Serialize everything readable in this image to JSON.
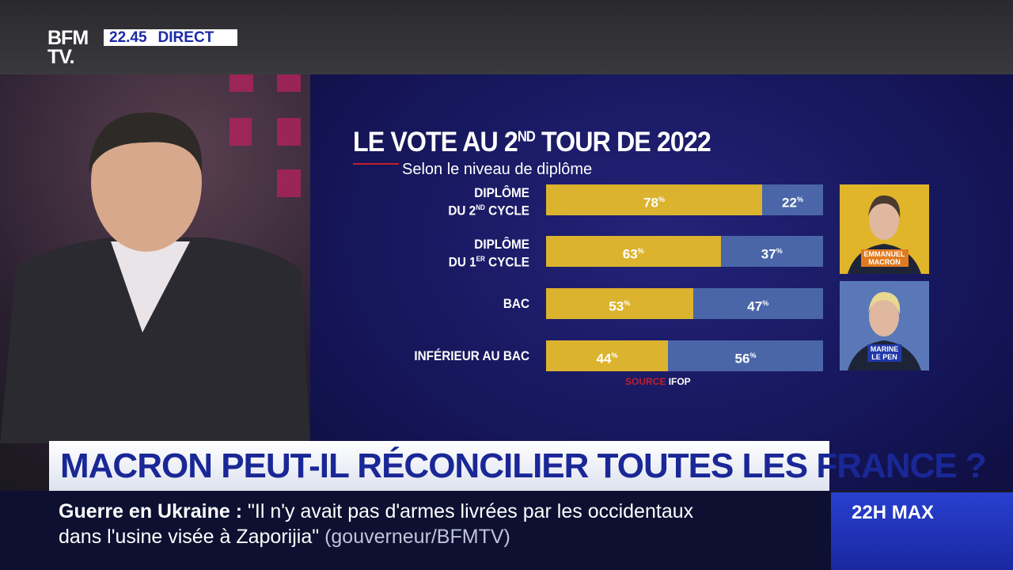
{
  "channel": {
    "logo": "BFM TV.",
    "time": "22.45",
    "live": "DIRECT"
  },
  "chart_data": {
    "type": "bar",
    "stacked": true,
    "orientation": "horizontal",
    "title": "LE VOTE AU 2ND TOUR DE 2022",
    "title_parts": {
      "pre": "LE VOTE AU 2",
      "sup": "ND",
      "post": " TOUR DE 2022"
    },
    "subtitle": "Selon le niveau de diplôme",
    "categories": [
      "DIPLÔME DU 2ND CYCLE",
      "DIPLÔME DU 1ER CYCLE",
      "BAC",
      "INFÉRIEUR AU BAC"
    ],
    "category_parts": [
      {
        "l1": "DIPLÔME",
        "pre": "DU 2",
        "sup": "ND",
        "post": " CYCLE"
      },
      {
        "l1": "DIPLÔME",
        "pre": "DU 1",
        "sup": "ER",
        "post": " CYCLE"
      },
      {
        "l1": "",
        "pre": "BAC",
        "sup": "",
        "post": ""
      },
      {
        "l1": "",
        "pre": "INFÉRIEUR AU BAC",
        "sup": "",
        "post": ""
      }
    ],
    "unit": "%",
    "series": [
      {
        "name": "EMMANUEL MACRON",
        "color": "#dcb32e",
        "values": [
          78,
          63,
          53,
          44
        ]
      },
      {
        "name": "MARINE LE PEN",
        "color": "#4a66a8",
        "values": [
          22,
          37,
          47,
          56
        ]
      }
    ],
    "xlim": [
      0,
      100
    ],
    "source_label": "SOURCE",
    "source": "IFOP"
  },
  "candidates": [
    {
      "l1": "EMMANUEL",
      "l2": "MACRON",
      "bg": "#e0b52a",
      "tag": "#e07a20"
    },
    {
      "l1": "MARINE",
      "l2": "LE PEN",
      "bg": "#5a78b8",
      "tag": "#2038a8"
    }
  ],
  "headline": "MACRON PEUT-IL RÉCONCILIER TOUTES LES FRANCE ?",
  "ticker": {
    "topic": "Guerre en Ukraine",
    "sep": ":",
    "line1": "\"Il n'y avait pas d'armes livrées par les occidentaux",
    "line2": "dans l'usine visée à Zaporijia\"",
    "attribution": "(gouverneur/BFMTV)"
  },
  "program": "22H MAX"
}
